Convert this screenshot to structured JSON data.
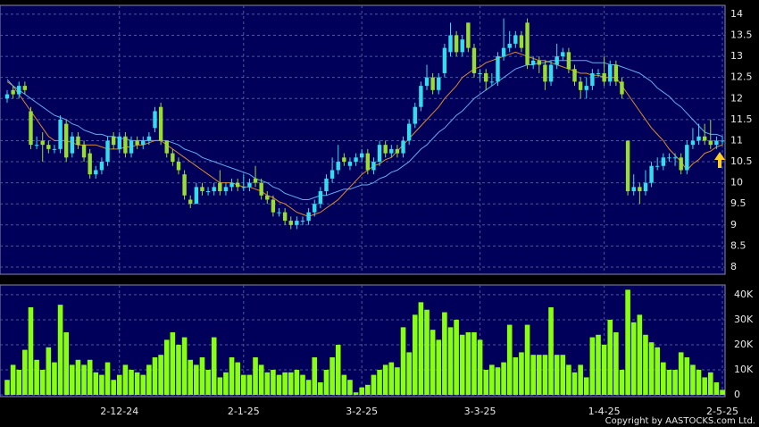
{
  "footer": "Copyright by AASTOCKS.com Ltd.",
  "chart_data": [
    {
      "type": "candlestick",
      "up_color": "#33ddee",
      "down_color": "#99dd33",
      "grid": true,
      "ylim": [
        7.83,
        14.21
      ],
      "yticks": [
        8,
        8.5,
        9,
        9.5,
        10,
        10.5,
        11,
        11.5,
        12,
        12.5,
        13,
        13.5,
        14
      ],
      "open": [
        12.0,
        12.2,
        12.1,
        12.3,
        11.7,
        10.9,
        11.0,
        10.9,
        10.8,
        10.8,
        11.4,
        10.7,
        11.1,
        10.9,
        10.7,
        10.2,
        10.3,
        10.5,
        11.1,
        10.8,
        11.1,
        10.7,
        11.0,
        10.9,
        11.0,
        11.3,
        11.8,
        11.0,
        10.7,
        10.5,
        10.2,
        9.6,
        9.5,
        9.9,
        9.8,
        9.8,
        10.0,
        9.8,
        9.9,
        10.0,
        9.9,
        9.9,
        10.1,
        10.0,
        9.7,
        9.6,
        9.3,
        9.3,
        9.1,
        9.0,
        9.1,
        9.1,
        9.3,
        9.5,
        9.8,
        10.1,
        10.3,
        10.6,
        10.4,
        10.5,
        10.6,
        10.7,
        10.3,
        10.5,
        10.9,
        10.7,
        10.8,
        10.7,
        11.0,
        11.4,
        11.8,
        12.3,
        12.5,
        12.2,
        12.6,
        13.1,
        13.5,
        13.1,
        13.8,
        13.2,
        12.6,
        12.6,
        12.4,
        12.4,
        13.0,
        13.2,
        13.3,
        13.5,
        13.8,
        12.8,
        12.9,
        12.8,
        12.4,
        12.8,
        13.0,
        13.1,
        12.7,
        12.4,
        12.2,
        12.3,
        12.6,
        12.6,
        12.4,
        12.8,
        12.4,
        11.0,
        9.8,
        9.9,
        9.8,
        10.0,
        10.4,
        10.4,
        10.6,
        10.6,
        10.6,
        10.3,
        10.9,
        11.0,
        11.1,
        11.0,
        10.9,
        11.0
      ],
      "high": [
        12.2,
        12.3,
        12.4,
        12.4,
        11.8,
        11.1,
        11.2,
        11.0,
        10.9,
        11.6,
        11.5,
        11.2,
        11.2,
        11.0,
        10.8,
        10.4,
        10.6,
        11.1,
        11.2,
        11.2,
        11.2,
        11.1,
        11.1,
        11.1,
        11.2,
        11.8,
        11.9,
        11.0,
        10.8,
        10.6,
        10.3,
        9.7,
        10.0,
        10.0,
        9.9,
        10.0,
        10.3,
        10.0,
        10.1,
        10.1,
        10.2,
        10.1,
        10.4,
        10.1,
        9.8,
        9.7,
        9.4,
        9.4,
        9.2,
        9.2,
        9.2,
        9.4,
        9.6,
        9.9,
        10.2,
        10.6,
        10.9,
        10.7,
        10.6,
        10.7,
        10.8,
        10.8,
        10.6,
        11.0,
        11.0,
        10.9,
        10.9,
        11.1,
        11.5,
        11.9,
        12.4,
        12.8,
        12.6,
        12.6,
        13.3,
        13.8,
        13.6,
        13.5,
        13.8,
        13.3,
        12.7,
        12.7,
        12.6,
        13.1,
        13.9,
        13.6,
        13.6,
        13.6,
        13.9,
        13.0,
        13.0,
        12.9,
        12.9,
        13.3,
        13.2,
        13.2,
        12.8,
        12.5,
        12.5,
        12.7,
        12.7,
        13.0,
        12.9,
        12.9,
        12.5,
        11.0,
        10.2,
        10.0,
        10.3,
        10.5,
        10.6,
        10.7,
        10.7,
        10.7,
        10.7,
        11.0,
        11.3,
        11.4,
        11.4,
        11.5,
        11.1,
        11.1
      ],
      "low": [
        11.9,
        12.0,
        12.0,
        12.1,
        10.8,
        10.8,
        10.5,
        10.7,
        10.7,
        10.7,
        10.5,
        10.6,
        10.8,
        10.5,
        10.1,
        10.1,
        10.2,
        10.4,
        10.8,
        10.7,
        10.6,
        10.6,
        10.8,
        10.8,
        10.9,
        11.2,
        10.9,
        10.6,
        10.4,
        10.2,
        9.6,
        9.4,
        9.5,
        9.7,
        9.7,
        9.7,
        9.7,
        9.7,
        9.8,
        9.8,
        9.8,
        9.8,
        9.9,
        9.6,
        9.5,
        9.2,
        9.2,
        9.0,
        8.9,
        8.9,
        9.0,
        9.0,
        9.2,
        9.4,
        9.7,
        10.0,
        10.2,
        10.4,
        10.3,
        10.4,
        10.5,
        10.2,
        10.2,
        10.4,
        10.6,
        10.6,
        10.6,
        10.6,
        10.9,
        11.3,
        11.7,
        12.2,
        12.1,
        12.1,
        12.5,
        13.0,
        13.0,
        13.0,
        13.1,
        12.5,
        12.4,
        12.2,
        12.3,
        12.3,
        12.9,
        13.1,
        13.2,
        13.1,
        12.7,
        12.7,
        12.6,
        12.2,
        12.3,
        12.7,
        12.9,
        12.6,
        12.3,
        12.0,
        12.0,
        12.2,
        12.5,
        12.3,
        12.3,
        12.3,
        12.0,
        9.7,
        9.7,
        9.5,
        9.7,
        9.9,
        10.3,
        10.3,
        10.5,
        10.4,
        10.2,
        10.2,
        10.8,
        10.9,
        10.9,
        10.8,
        10.8,
        10.9
      ],
      "close": [
        12.1,
        12.1,
        12.3,
        12.2,
        10.9,
        10.9,
        10.9,
        10.8,
        10.8,
        11.5,
        10.6,
        11.1,
        10.9,
        10.6,
        10.2,
        10.3,
        10.5,
        11.0,
        10.9,
        11.1,
        10.7,
        11.0,
        10.9,
        11.0,
        11.1,
        11.7,
        11.0,
        10.7,
        10.5,
        10.3,
        9.7,
        9.5,
        9.9,
        9.8,
        9.8,
        9.9,
        9.8,
        9.9,
        10.0,
        9.9,
        9.9,
        10.0,
        10.0,
        9.7,
        9.6,
        9.3,
        9.3,
        9.1,
        9.0,
        9.1,
        9.1,
        9.3,
        9.5,
        9.8,
        10.1,
        10.3,
        10.5,
        10.5,
        10.5,
        10.6,
        10.7,
        10.3,
        10.5,
        10.9,
        10.7,
        10.8,
        10.7,
        11.0,
        11.4,
        11.8,
        12.3,
        12.5,
        12.2,
        12.5,
        13.2,
        13.5,
        13.1,
        13.4,
        13.2,
        12.6,
        12.6,
        12.4,
        12.4,
        13.0,
        13.2,
        13.3,
        13.5,
        13.2,
        12.8,
        12.9,
        12.8,
        12.4,
        12.8,
        13.0,
        13.1,
        12.7,
        12.4,
        12.2,
        12.3,
        12.6,
        12.6,
        12.4,
        12.8,
        12.4,
        12.1,
        9.8,
        9.9,
        9.8,
        10.0,
        10.4,
        10.4,
        10.6,
        10.6,
        10.6,
        10.3,
        10.9,
        11.0,
        11.1,
        11.0,
        10.9,
        11.0,
        11.0
      ],
      "lines": [
        {
          "color": "#e08a2a",
          "values": [
            12.4,
            12.3,
            12.1,
            11.9,
            11.7,
            11.5,
            11.3,
            11.1,
            11.0,
            11.0,
            11.0,
            10.95,
            10.9,
            10.9,
            10.9,
            10.9,
            10.85,
            10.8,
            10.8,
            10.8,
            10.85,
            10.85,
            10.9,
            10.9,
            10.95,
            11.0,
            11.0,
            10.9,
            10.8,
            10.7,
            10.6,
            10.5,
            10.4,
            10.3,
            10.2,
            10.1,
            10.0,
            10.0,
            10.0,
            9.95,
            9.9,
            9.9,
            9.85,
            9.8,
            9.7,
            9.65,
            9.55,
            9.5,
            9.4,
            9.3,
            9.25,
            9.2,
            9.25,
            9.3,
            9.4,
            9.5,
            9.6,
            9.75,
            9.9,
            10.05,
            10.2,
            10.3,
            10.4,
            10.45,
            10.55,
            10.6,
            10.75,
            10.9,
            11.05,
            11.2,
            11.35,
            11.5,
            11.65,
            11.8,
            12.0,
            12.15,
            12.3,
            12.5,
            12.6,
            12.7,
            12.75,
            12.85,
            12.9,
            12.95,
            13.0,
            13.05,
            13.1,
            13.05,
            13.0,
            12.95,
            12.9,
            12.9,
            12.85,
            12.8,
            12.75,
            12.7,
            12.65,
            12.6,
            12.6,
            12.55,
            12.55,
            12.5,
            12.5,
            12.5,
            12.3,
            12.1,
            11.9,
            11.7,
            11.5,
            11.3,
            11.15,
            11.0,
            10.8,
            10.65,
            10.5,
            10.3,
            10.45,
            10.55,
            10.7,
            10.75,
            10.85,
            10.9
          ]
        },
        {
          "color": "#66aaee",
          "values": [
            12.45,
            12.3,
            12.2,
            12.1,
            12.0,
            11.9,
            11.8,
            11.7,
            11.6,
            11.55,
            11.5,
            11.4,
            11.35,
            11.25,
            11.2,
            11.15,
            11.15,
            11.1,
            11.1,
            11.05,
            11.05,
            11.0,
            11.0,
            11.0,
            11.0,
            11.0,
            11.0,
            11.0,
            10.95,
            10.9,
            10.8,
            10.75,
            10.7,
            10.6,
            10.55,
            10.5,
            10.45,
            10.4,
            10.35,
            10.3,
            10.25,
            10.2,
            10.1,
            10.05,
            10.0,
            9.9,
            9.85,
            9.75,
            9.7,
            9.65,
            9.6,
            9.6,
            9.65,
            9.7,
            9.7,
            9.75,
            9.8,
            9.85,
            9.85,
            9.9,
            9.95,
            9.95,
            10.0,
            10.1,
            10.15,
            10.25,
            10.3,
            10.4,
            10.5,
            10.65,
            10.8,
            10.9,
            11.05,
            11.2,
            11.3,
            11.45,
            11.6,
            11.7,
            11.85,
            12.0,
            12.1,
            12.2,
            12.3,
            12.4,
            12.5,
            12.6,
            12.7,
            12.75,
            12.8,
            12.8,
            12.85,
            12.85,
            12.9,
            12.9,
            12.9,
            12.9,
            12.9,
            12.9,
            12.9,
            12.85,
            12.85,
            12.85,
            12.8,
            12.8,
            12.75,
            12.7,
            12.65,
            12.6,
            12.5,
            12.4,
            12.25,
            12.15,
            12.05,
            11.9,
            11.8,
            11.65,
            11.5,
            11.35,
            11.2,
            11.15,
            11.15,
            11.1
          ]
        }
      ]
    },
    {
      "type": "bar",
      "color": "#88ff11",
      "grid": true,
      "ylim": [
        -700,
        43900
      ],
      "yticks": [
        0,
        {
          "value": 10000,
          "label": "10K"
        },
        {
          "value": 20000,
          "label": "20K"
        },
        {
          "value": 30000,
          "label": "30K"
        },
        {
          "value": 40000,
          "label": "40K"
        }
      ],
      "categories": [
        null,
        null,
        null,
        null,
        null,
        null,
        null,
        null,
        null,
        null,
        null,
        null,
        null,
        null,
        null,
        null,
        null,
        null,
        null,
        "2-12-24",
        null,
        null,
        null,
        null,
        null,
        null,
        null,
        null,
        null,
        null,
        null,
        null,
        null,
        null,
        null,
        null,
        null,
        null,
        null,
        null,
        "2-1-25",
        null,
        null,
        null,
        null,
        null,
        null,
        null,
        null,
        null,
        null,
        null,
        null,
        null,
        null,
        null,
        null,
        null,
        null,
        null,
        "3-2-25",
        null,
        null,
        null,
        null,
        null,
        null,
        null,
        null,
        null,
        null,
        null,
        null,
        null,
        null,
        null,
        null,
        null,
        null,
        null,
        "3-3-25",
        null,
        null,
        null,
        null,
        null,
        null,
        null,
        null,
        null,
        null,
        null,
        null,
        null,
        null,
        null,
        null,
        null,
        null,
        null,
        null,
        "1-4-25",
        null,
        null,
        null,
        null,
        null,
        null,
        null,
        null,
        null,
        null,
        null,
        null,
        null,
        null,
        null,
        null,
        null,
        null,
        null,
        "2-5-25"
      ],
      "values": [
        6000,
        12000,
        10000,
        18000,
        35000,
        14000,
        10000,
        19000,
        13000,
        36000,
        25000,
        12000,
        14000,
        12000,
        14000,
        9000,
        8000,
        13000,
        6000,
        8000,
        12000,
        10000,
        9000,
        8000,
        12000,
        15000,
        16000,
        22000,
        25000,
        20000,
        23000,
        14000,
        12000,
        15000,
        10000,
        23000,
        7000,
        9000,
        15000,
        13000,
        8000,
        8000,
        15000,
        12000,
        9000,
        10000,
        8000,
        9000,
        9000,
        10000,
        8000,
        6000,
        15000,
        5000,
        10000,
        15000,
        20000,
        8000,
        6000,
        1000,
        3000,
        4000,
        8000,
        10000,
        12000,
        13000,
        11000,
        27000,
        17000,
        32000,
        37000,
        34000,
        26000,
        22000,
        33000,
        27000,
        30000,
        24000,
        25000,
        25000,
        22000,
        10000,
        12000,
        11000,
        13000,
        28000,
        15000,
        17000,
        28000,
        16000,
        16000,
        16000,
        35000,
        16000,
        16000,
        12000,
        9000,
        12000,
        7000,
        23000,
        24000,
        20000,
        30000,
        25000,
        10000,
        42000,
        29000,
        32000,
        24000,
        21000,
        19000,
        13000,
        10000,
        10000,
        17000,
        15000,
        12000,
        10000,
        7000,
        9000,
        5000,
        2000
      ]
    }
  ]
}
